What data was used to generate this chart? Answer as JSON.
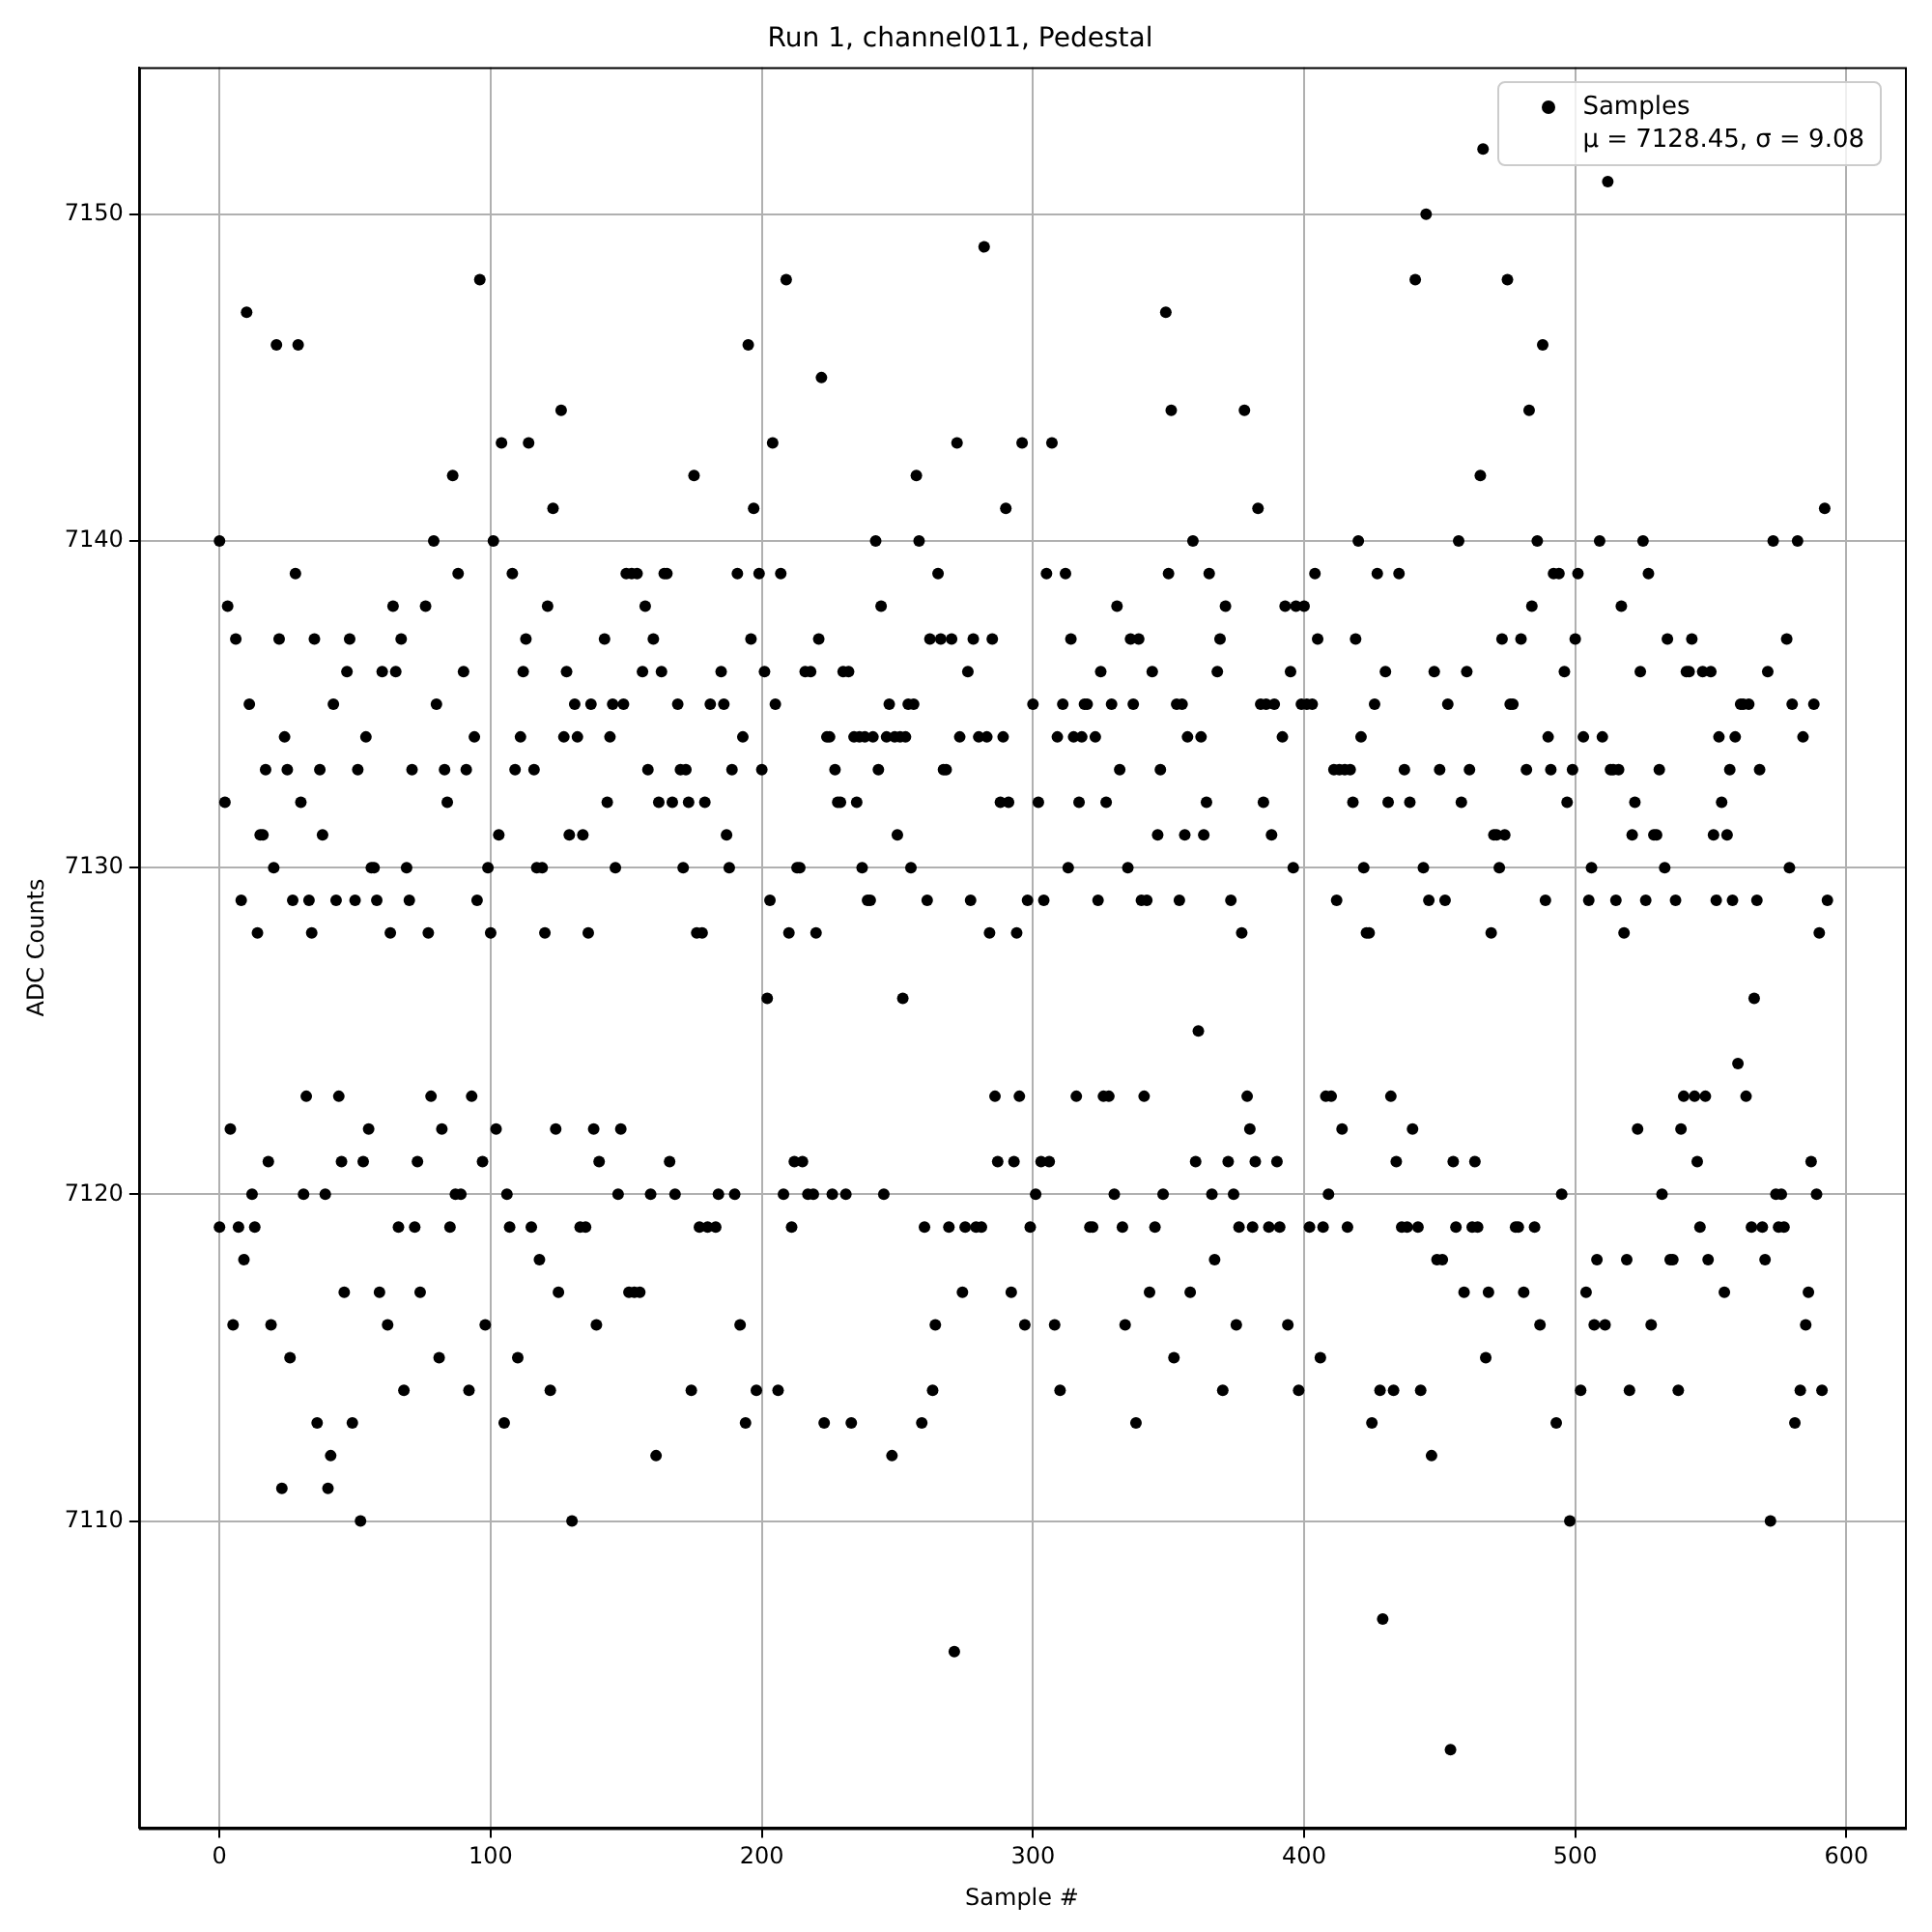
{
  "chart_data": {
    "type": "scatter",
    "title": "Run 1, channel011, Pedestal",
    "xlabel": "Sample #",
    "ylabel": "ADC Counts",
    "xlim": [
      -29.7,
      621.6
    ],
    "ylim": [
      7100.6,
      7154.5
    ],
    "xticks": [
      0,
      100,
      200,
      300,
      400,
      500,
      600
    ],
    "yticks": [
      7110,
      7120,
      7130,
      7140,
      7150
    ],
    "grid": true,
    "legend": "top right",
    "marker": "circle",
    "series": [
      {
        "name": "Samples\nμ = 7128.45, σ = 9.08",
        "color": "#000000",
        "x": [
          0,
          0,
          2,
          3,
          4,
          5,
          6,
          7,
          8,
          9,
          10,
          11,
          12,
          13,
          14,
          15,
          16,
          17,
          18,
          19,
          20,
          21,
          22,
          23,
          24,
          25,
          26,
          27,
          28,
          29,
          30,
          31,
          32,
          33,
          34,
          35,
          36,
          37,
          38,
          39,
          40,
          41,
          42,
          43,
          44,
          45,
          46,
          47,
          48,
          49,
          50,
          51,
          52,
          53,
          54,
          55,
          56,
          57,
          58,
          59,
          60,
          62,
          63,
          64,
          65,
          66,
          67,
          68,
          69,
          70,
          71,
          72,
          73,
          74,
          76,
          77,
          78,
          79,
          80,
          81,
          82,
          83,
          84,
          85,
          86,
          87,
          88,
          89,
          90,
          91,
          92,
          93,
          94,
          95,
          96,
          97,
          98,
          99,
          100,
          101,
          102,
          103,
          104,
          105,
          106,
          107,
          108,
          109,
          110,
          111,
          112,
          113,
          114,
          115,
          116,
          117,
          118,
          119,
          120,
          121,
          122,
          123,
          124,
          125,
          126,
          127,
          128,
          129,
          130,
          131,
          132,
          133,
          134,
          135,
          136,
          137,
          138,
          139,
          140,
          142,
          143,
          144,
          145,
          146,
          147,
          148,
          149,
          150,
          151,
          152,
          153,
          154,
          155,
          156,
          157,
          158,
          159,
          160,
          161,
          162,
          163,
          164,
          165,
          166,
          167,
          168,
          169,
          170,
          171,
          172,
          173,
          174,
          175,
          176,
          177,
          178,
          179,
          180,
          181,
          183,
          184,
          185,
          186,
          187,
          188,
          189,
          190,
          191,
          192,
          193,
          194,
          195,
          196,
          197,
          198,
          199,
          200,
          201,
          202,
          203,
          204,
          205,
          206,
          207,
          208,
          209,
          210,
          211,
          212,
          213,
          214,
          215,
          216,
          217,
          218,
          219,
          220,
          221,
          222,
          223,
          224,
          225,
          226,
          227,
          228,
          229,
          230,
          231,
          232,
          233,
          234,
          235,
          236,
          237,
          238,
          239,
          240,
          241,
          242,
          243,
          244,
          245,
          246,
          247,
          248,
          249,
          250,
          251,
          252,
          253,
          254,
          255,
          256,
          257,
          258,
          259,
          260,
          261,
          262,
          263,
          264,
          265,
          266,
          267,
          268,
          269,
          270,
          271,
          272,
          273,
          274,
          275,
          276,
          277,
          278,
          279,
          280,
          281,
          282,
          283,
          284,
          285,
          286,
          287,
          288,
          289,
          290,
          291,
          292,
          293,
          294,
          295,
          296,
          297,
          298,
          299,
          300,
          301,
          302,
          303,
          304,
          305,
          306,
          307,
          308,
          309,
          310,
          311,
          312,
          313,
          314,
          315,
          316,
          317,
          318,
          319,
          320,
          321,
          322,
          323,
          324,
          325,
          326,
          327,
          328,
          329,
          330,
          331,
          332,
          333,
          334,
          335,
          336,
          337,
          338,
          339,
          340,
          341,
          342,
          343,
          344,
          345,
          346,
          347,
          348,
          349,
          350,
          351,
          352,
          353,
          354,
          355,
          356,
          357,
          358,
          359,
          360,
          361,
          362,
          363,
          364,
          365,
          366,
          367,
          368,
          369,
          370,
          371,
          372,
          373,
          374,
          375,
          376,
          377,
          378,
          379,
          380,
          381,
          382,
          383,
          384,
          385,
          386,
          387,
          388,
          389,
          390,
          391,
          392,
          393,
          394,
          395,
          396,
          397,
          398,
          399,
          400,
          401,
          402,
          403,
          404,
          405,
          406,
          407,
          408,
          409,
          410,
          411,
          412,
          413,
          414,
          415,
          416,
          417,
          418,
          419,
          420,
          421,
          422,
          423,
          424,
          425,
          426,
          427,
          428,
          429,
          430,
          431,
          432,
          433,
          434,
          435,
          436,
          437,
          438,
          439,
          440,
          441,
          442,
          443,
          444,
          445,
          446,
          447,
          448,
          449,
          450,
          451,
          452,
          453,
          454,
          455,
          456,
          457,
          458,
          459,
          460,
          461,
          462,
          463,
          464,
          465,
          466,
          467,
          468,
          469,
          470,
          471,
          472,
          473,
          474,
          475,
          476,
          477,
          478,
          479,
          480,
          481,
          482,
          483,
          484,
          485,
          486,
          487,
          488,
          489,
          490,
          491,
          492,
          493,
          494,
          495,
          496,
          497,
          498,
          499,
          500,
          501,
          502,
          503,
          504,
          505,
          506,
          507,
          508,
          509,
          510,
          511,
          512,
          513,
          514,
          515,
          516,
          517,
          518,
          519,
          520,
          521,
          522,
          523,
          524,
          525,
          526,
          527,
          528,
          529,
          530,
          531,
          532,
          533,
          534,
          535,
          536,
          537,
          538,
          539,
          540,
          541,
          542,
          543,
          544,
          545,
          546,
          547,
          548,
          549,
          550,
          551,
          552,
          553,
          554,
          555,
          556,
          557,
          558,
          559,
          560,
          561,
          562,
          563,
          564,
          565,
          566,
          567,
          568,
          569,
          570,
          571,
          572,
          573,
          574,
          575,
          576,
          577,
          578,
          579,
          580,
          581,
          582,
          583,
          584,
          585,
          586,
          587,
          588,
          589,
          590,
          591,
          592,
          593
        ],
        "values": [
          7140,
          7119,
          7132,
          7138,
          7122,
          7116,
          7137,
          7119,
          7129,
          7118,
          7147,
          7135,
          7120,
          7119,
          7128,
          7131,
          7131,
          7133,
          7121,
          7116,
          7130,
          7146,
          7137,
          7111,
          7134,
          7133,
          7115,
          7129,
          7139,
          7146,
          7132,
          7120,
          7123,
          7129,
          7128,
          7137,
          7113,
          7133,
          7131,
          7120,
          7111,
          7112,
          7135,
          7129,
          7123,
          7121,
          7117,
          7136,
          7137,
          7113,
          7129,
          7133,
          7110,
          7121,
          7134,
          7122,
          7130,
          7130,
          7129,
          7117,
          7136,
          7116,
          7128,
          7138,
          7136,
          7119,
          7137,
          7114,
          7130,
          7129,
          7133,
          7119,
          7121,
          7117,
          7138,
          7128,
          7123,
          7140,
          7135,
          7115,
          7122,
          7133,
          7132,
          7119,
          7142,
          7120,
          7139,
          7120,
          7136,
          7133,
          7114,
          7123,
          7134,
          7129,
          7148,
          7121,
          7116,
          7130,
          7128,
          7140,
          7122,
          7131,
          7143,
          7113,
          7120,
          7119,
          7139,
          7133,
          7115,
          7134,
          7136,
          7137,
          7143,
          7119,
          7133,
          7130,
          7118,
          7130,
          7128,
          7138,
          7114,
          7141,
          7122,
          7117,
          7144,
          7134,
          7136,
          7131,
          7110,
          7135,
          7134,
          7119,
          7131,
          7119,
          7128,
          7135,
          7122,
          7116,
          7121,
          7137,
          7132,
          7134,
          7135,
          7130,
          7120,
          7122,
          7135,
          7139,
          7117,
          7139,
          7117,
          7139,
          7117,
          7136,
          7138,
          7133,
          7120,
          7137,
          7112,
          7132,
          7136,
          7139,
          7139,
          7121,
          7132,
          7120,
          7135,
          7133,
          7130,
          7133,
          7132,
          7114,
          7142,
          7128,
          7119,
          7128,
          7132,
          7119,
          7135,
          7119,
          7120,
          7136,
          7135,
          7131,
          7130,
          7133,
          7120,
          7139,
          7116,
          7134,
          7113,
          7146,
          7137,
          7141,
          7114,
          7139,
          7133,
          7136,
          7126,
          7129,
          7143,
          7135,
          7114,
          7139,
          7120,
          7148,
          7128,
          7119,
          7121,
          7130,
          7130,
          7121,
          7136,
          7120,
          7136,
          7120,
          7128,
          7137,
          7145,
          7113,
          7134,
          7134,
          7120,
          7133,
          7132,
          7132,
          7136,
          7120,
          7136,
          7113,
          7134,
          7132,
          7134,
          7130,
          7134,
          7129,
          7129,
          7134,
          7140,
          7133,
          7138,
          7120,
          7134,
          7135,
          7112,
          7134,
          7131,
          7134,
          7126,
          7134,
          7135,
          7130,
          7135,
          7142,
          7140,
          7113,
          7119,
          7129,
          7137,
          7114,
          7116,
          7139,
          7137,
          7133,
          7133,
          7119,
          7137,
          7106,
          7143,
          7134,
          7117,
          7119,
          7136,
          7129,
          7137,
          7119,
          7134,
          7119,
          7149,
          7134,
          7128,
          7137,
          7123,
          7121,
          7132,
          7134,
          7141,
          7132,
          7117,
          7121,
          7128,
          7123,
          7143,
          7116,
          7129,
          7119,
          7135,
          7120,
          7132,
          7121,
          7129,
          7139,
          7121,
          7143,
          7116,
          7134,
          7114,
          7135,
          7139,
          7130,
          7137,
          7134,
          7123,
          7132,
          7134,
          7135,
          7135,
          7119,
          7119,
          7134,
          7129,
          7136,
          7123,
          7132,
          7123,
          7135,
          7120,
          7138,
          7133,
          7119,
          7116,
          7130,
          7137,
          7135,
          7113,
          7137,
          7129,
          7123,
          7129,
          7117,
          7136,
          7119,
          7131,
          7133,
          7120,
          7147,
          7139,
          7144,
          7115,
          7135,
          7129,
          7135,
          7131,
          7134,
          7117,
          7140,
          7121,
          7125,
          7134,
          7131,
          7132,
          7139,
          7120,
          7118,
          7136,
          7137,
          7114,
          7138,
          7121,
          7129,
          7120,
          7116,
          7119,
          7128,
          7144,
          7123,
          7122,
          7119,
          7121,
          7141,
          7135,
          7132,
          7135,
          7119,
          7131,
          7135,
          7121,
          7119,
          7134,
          7138,
          7116,
          7136,
          7130,
          7138,
          7114,
          7135,
          7138,
          7135,
          7119,
          7135,
          7139,
          7137,
          7115,
          7119,
          7123,
          7120,
          7123,
          7133,
          7129,
          7133,
          7122,
          7133,
          7119,
          7133,
          7132,
          7137,
          7140,
          7134,
          7130,
          7128,
          7128,
          7113,
          7135,
          7139,
          7114,
          7107,
          7136,
          7132,
          7123,
          7114,
          7121,
          7139,
          7119,
          7133,
          7119,
          7132,
          7122,
          7148,
          7119,
          7114,
          7130,
          7150,
          7129,
          7112,
          7136,
          7118,
          7133,
          7118,
          7129,
          7135,
          7103,
          7121,
          7119,
          7140,
          7132,
          7117,
          7136,
          7133,
          7119,
          7121,
          7119,
          7142,
          7152,
          7115,
          7117,
          7128,
          7131,
          7131,
          7130,
          7137,
          7131,
          7148,
          7135,
          7135,
          7119,
          7119,
          7137,
          7117,
          7133,
          7144,
          7138,
          7119,
          7140,
          7116,
          7146,
          7129,
          7134,
          7133,
          7139,
          7113,
          7139,
          7120,
          7136,
          7132,
          7110,
          7133,
          7137,
          7139,
          7114,
          7134,
          7117,
          7129,
          7130,
          7116,
          7118,
          7140,
          7134,
          7116,
          7151,
          7133,
          7133,
          7129,
          7133,
          7138,
          7128,
          7118,
          7114,
          7131,
          7132,
          7122,
          7136,
          7140,
          7129,
          7139,
          7116,
          7131,
          7131,
          7133,
          7120,
          7130,
          7137,
          7118,
          7118,
          7129,
          7114,
          7122,
          7123,
          7136,
          7136,
          7137,
          7123,
          7121,
          7119,
          7136,
          7123,
          7118,
          7136,
          7131,
          7129,
          7134,
          7132,
          7117,
          7131,
          7133,
          7129,
          7134,
          7124,
          7135,
          7135,
          7123,
          7135,
          7119,
          7126,
          7129,
          7133,
          7119,
          7118,
          7136,
          7110,
          7140,
          7120,
          7119,
          7120,
          7119,
          7137,
          7130,
          7135,
          7113,
          7140,
          7114,
          7134,
          7116,
          7117,
          7121,
          7135,
          7120,
          7128,
          7114,
          7141,
          7129
        ]
      }
    ]
  }
}
